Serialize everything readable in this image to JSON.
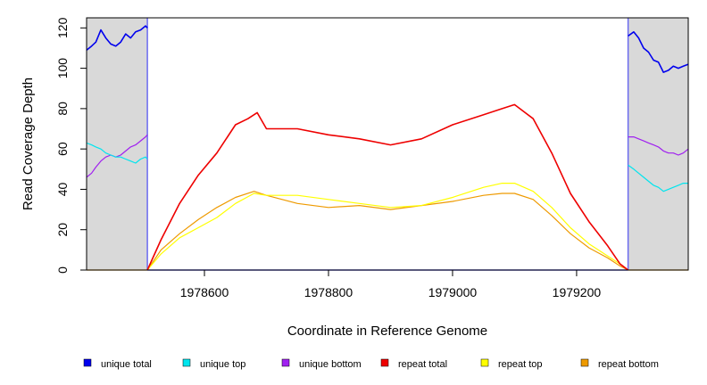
{
  "chart_data": {
    "type": "line",
    "title": "",
    "xlabel": "Coordinate in Reference Genome",
    "ylabel": "Read Coverage Depth",
    "xlim": [
      1978410,
      1979380
    ],
    "ylim": [
      0,
      125
    ],
    "x_ticks": [
      1978600,
      1978800,
      1979000,
      1979200
    ],
    "x_tick_labels": [
      "1978600",
      "1978800",
      "1979000",
      "1979200"
    ],
    "y_ticks": [
      0,
      20,
      40,
      60,
      80,
      100,
      120
    ],
    "y_tick_labels": [
      "0",
      "20",
      "40",
      "60",
      "80",
      "100",
      "120"
    ],
    "grid": false,
    "legend_placement": "bottom",
    "unique_regions": [
      [
        1978410,
        1978508
      ],
      [
        1979283,
        1979380
      ]
    ],
    "shade_color": "#d9d9d9",
    "series": [
      {
        "name": "unique total",
        "color": "#0000ee",
        "segments": [
          {
            "x": [
              1978410,
              1978418,
              1978425,
              1978433,
              1978441,
              1978449,
              1978457,
              1978465,
              1978473,
              1978481,
              1978489,
              1978497,
              1978505,
              1978508
            ],
            "y": [
              109,
              111,
              113,
              119,
              115,
              112,
              111,
              113,
              117,
              115,
              118,
              119,
              121,
              120
            ]
          },
          {
            "x": [
              1979283,
              1979292,
              1979300,
              1979308,
              1979316,
              1979324,
              1979332,
              1979340,
              1979348,
              1979356,
              1979364,
              1979372,
              1979380
            ],
            "y": [
              116,
              118,
              115,
              110,
              108,
              104,
              103,
              98,
              99,
              101,
              100,
              101,
              102
            ]
          }
        ]
      },
      {
        "name": "unique top",
        "color": "#00e5ee",
        "segments": [
          {
            "x": [
              1978410,
              1978418,
              1978425,
              1978433,
              1978441,
              1978449,
              1978457,
              1978465,
              1978473,
              1978481,
              1978489,
              1978497,
              1978505,
              1978508
            ],
            "y": [
              63,
              62,
              61,
              60,
              58,
              57,
              56,
              56,
              55,
              54,
              53,
              55,
              56,
              55
            ]
          },
          {
            "x": [
              1979283,
              1979292,
              1979300,
              1979308,
              1979316,
              1979324,
              1979332,
              1979340,
              1979348,
              1979356,
              1979364,
              1979372,
              1979380
            ],
            "y": [
              52,
              50,
              48,
              46,
              44,
              42,
              41,
              39,
              40,
              41,
              42,
              43,
              43
            ]
          }
        ]
      },
      {
        "name": "unique bottom",
        "color": "#a020f0",
        "segments": [
          {
            "x": [
              1978410,
              1978418,
              1978425,
              1978433,
              1978441,
              1978449,
              1978457,
              1978465,
              1978473,
              1978481,
              1978489,
              1978497,
              1978505,
              1978508
            ],
            "y": [
              46,
              48,
              51,
              54,
              56,
              57,
              56,
              57,
              59,
              61,
              62,
              64,
              66,
              67
            ]
          },
          {
            "x": [
              1979283,
              1979292,
              1979300,
              1979308,
              1979316,
              1979324,
              1979332,
              1979340,
              1979348,
              1979356,
              1979364,
              1979372,
              1979380
            ],
            "y": [
              66,
              66,
              65,
              64,
              63,
              62,
              61,
              59,
              58,
              58,
              57,
              58,
              60
            ]
          }
        ]
      },
      {
        "name": "repeat total",
        "color": "#ee0000",
        "segments": [
          {
            "x": [
              1978508,
              1978530,
              1978560,
              1978590,
              1978620,
              1978650,
              1978670,
              1978685,
              1978700,
              1978750,
              1978800,
              1978850,
              1978900,
              1978950,
              1979000,
              1979050,
              1979080,
              1979100,
              1979130,
              1979160,
              1979190,
              1979220,
              1979250,
              1979270,
              1979283
            ],
            "y": [
              0,
              15,
              33,
              47,
              58,
              72,
              75,
              78,
              70,
              70,
              67,
              65,
              62,
              65,
              72,
              77,
              80,
              82,
              75,
              58,
              38,
              24,
              12,
              3,
              0
            ]
          }
        ]
      },
      {
        "name": "repeat top",
        "color": "#ffff00",
        "segments": [
          {
            "x": [
              1978508,
              1978530,
              1978560,
              1978590,
              1978620,
              1978650,
              1978680,
              1978700,
              1978750,
              1978800,
              1978850,
              1978900,
              1978950,
              1979000,
              1979050,
              1979080,
              1979100,
              1979130,
              1979160,
              1979190,
              1979220,
              1979250,
              1979270,
              1979283
            ],
            "y": [
              0,
              8,
              16,
              21,
              26,
              33,
              38,
              37,
              37,
              35,
              33,
              31,
              32,
              36,
              41,
              43,
              43,
              39,
              31,
              21,
              13,
              7,
              3,
              0
            ]
          }
        ]
      },
      {
        "name": "repeat bottom",
        "color": "#ee9a00",
        "segments": [
          {
            "x": [
              1978508,
              1978530,
              1978560,
              1978590,
              1978620,
              1978650,
              1978680,
              1978700,
              1978750,
              1978800,
              1978850,
              1978900,
              1978950,
              1979000,
              1979050,
              1979080,
              1979100,
              1979130,
              1979160,
              1979190,
              1979220,
              1979250,
              1979270,
              1979283
            ],
            "y": [
              0,
              10,
              18,
              25,
              31,
              36,
              39,
              37,
              33,
              31,
              32,
              30,
              32,
              34,
              37,
              38,
              38,
              35,
              27,
              18,
              11,
              6,
              2,
              0
            ]
          },
          {
            "x": [
              1978410,
              1978508
            ],
            "y": [
              0,
              0
            ]
          },
          {
            "x": [
              1979283,
              1979380
            ],
            "y": [
              0,
              0
            ]
          }
        ]
      }
    ]
  }
}
